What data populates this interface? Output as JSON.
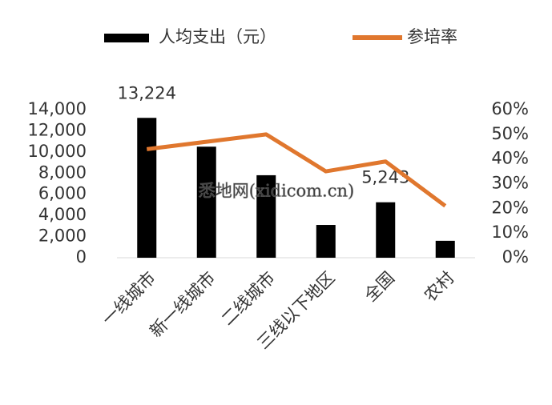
{
  "chart_data": {
    "type": "bar-line",
    "categories": [
      "一线城市",
      "新一线城市",
      "二线城市",
      "三线以下地区",
      "全国",
      "农村"
    ],
    "series": [
      {
        "name": "人均支出（元）",
        "type": "bar",
        "color": "#000000",
        "values": [
          13224,
          10500,
          7800,
          3100,
          5243,
          1600
        ],
        "value_labels": [
          "13,224",
          null,
          null,
          null,
          "5,243",
          null
        ]
      },
      {
        "name": "参培率",
        "type": "line",
        "axis": "y2",
        "color": "#e0772e",
        "values": [
          44,
          47,
          50,
          35,
          39,
          21
        ]
      }
    ],
    "ylim": [
      0,
      14000
    ],
    "yticks": [
      0,
      {
        "value": 2000,
        "label": "2,000"
      },
      {
        "value": 4000,
        "label": "4,000"
      },
      {
        "value": 6000,
        "label": "6,000"
      },
      {
        "value": 8000,
        "label": "8,000"
      },
      {
        "value": 10000,
        "label": "10,000"
      },
      {
        "value": 12000,
        "label": "12,000"
      },
      {
        "value": 14000,
        "label": "14,000"
      }
    ],
    "y2lim": [
      0,
      60
    ],
    "y2ticks": [
      {
        "value": 0,
        "label": "0%"
      },
      {
        "value": 10,
        "label": "10%"
      },
      {
        "value": 20,
        "label": "20%"
      },
      {
        "value": 30,
        "label": "30%"
      },
      {
        "value": 40,
        "label": "40%"
      },
      {
        "value": 50,
        "label": "50%"
      },
      {
        "value": 60,
        "label": "60%"
      }
    ],
    "watermark": "悉地网(xidicom.cn)"
  }
}
